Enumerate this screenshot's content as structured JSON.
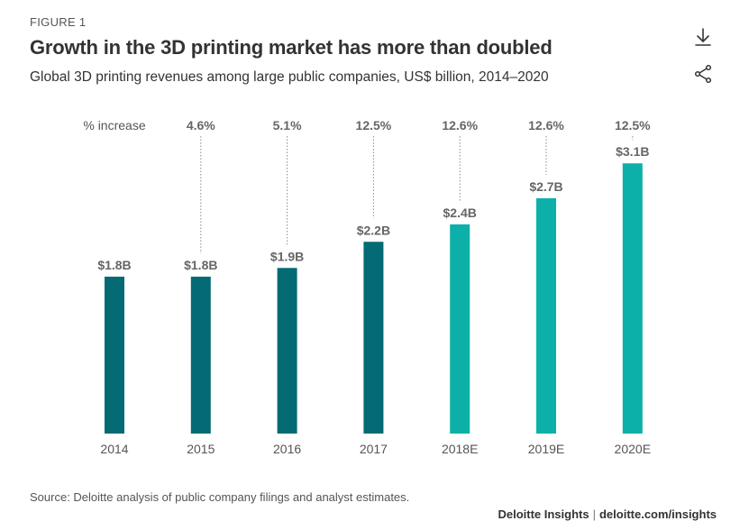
{
  "header": {
    "figure_label": "FIGURE 1",
    "title": "Growth in the 3D printing market has more than doubled",
    "subtitle": "Global 3D printing revenues among large public companies, US$ billion, 2014–2020"
  },
  "icons": {
    "download": "download-icon",
    "share": "share-icon"
  },
  "footer": {
    "source": "Source: Deloitte analysis of public company filings and analyst estimates.",
    "credit_brand": "Deloitte Insights",
    "credit_separator": "|",
    "credit_url": "deloitte.com/insights"
  },
  "chart_data": {
    "type": "bar",
    "title": "Growth in the 3D printing market has more than doubled",
    "xlabel": "",
    "ylabel": "US$ billion",
    "ylim": [
      0,
      3.4
    ],
    "grid": false,
    "categories": [
      "2014",
      "2015",
      "2016",
      "2017",
      "2018E",
      "2019E",
      "2020E"
    ],
    "values": [
      1.8,
      1.8,
      1.9,
      2.2,
      2.4,
      2.7,
      3.1
    ],
    "value_labels": [
      "$1.8B",
      "$1.8B",
      "$1.9B",
      "$2.2B",
      "$2.4B",
      "$2.7B",
      "$3.1B"
    ],
    "increase_header": "% increase",
    "increase_labels": [
      "",
      "4.6%",
      "5.1%",
      "12.5%",
      "12.6%",
      "12.6%",
      "12.5%"
    ],
    "estimated": [
      false,
      false,
      false,
      false,
      true,
      true,
      true
    ],
    "colors": {
      "actual": "#046A73",
      "estimate": "#0DB0A9",
      "axis_text": "#555555",
      "label_text": "#666666"
    }
  }
}
